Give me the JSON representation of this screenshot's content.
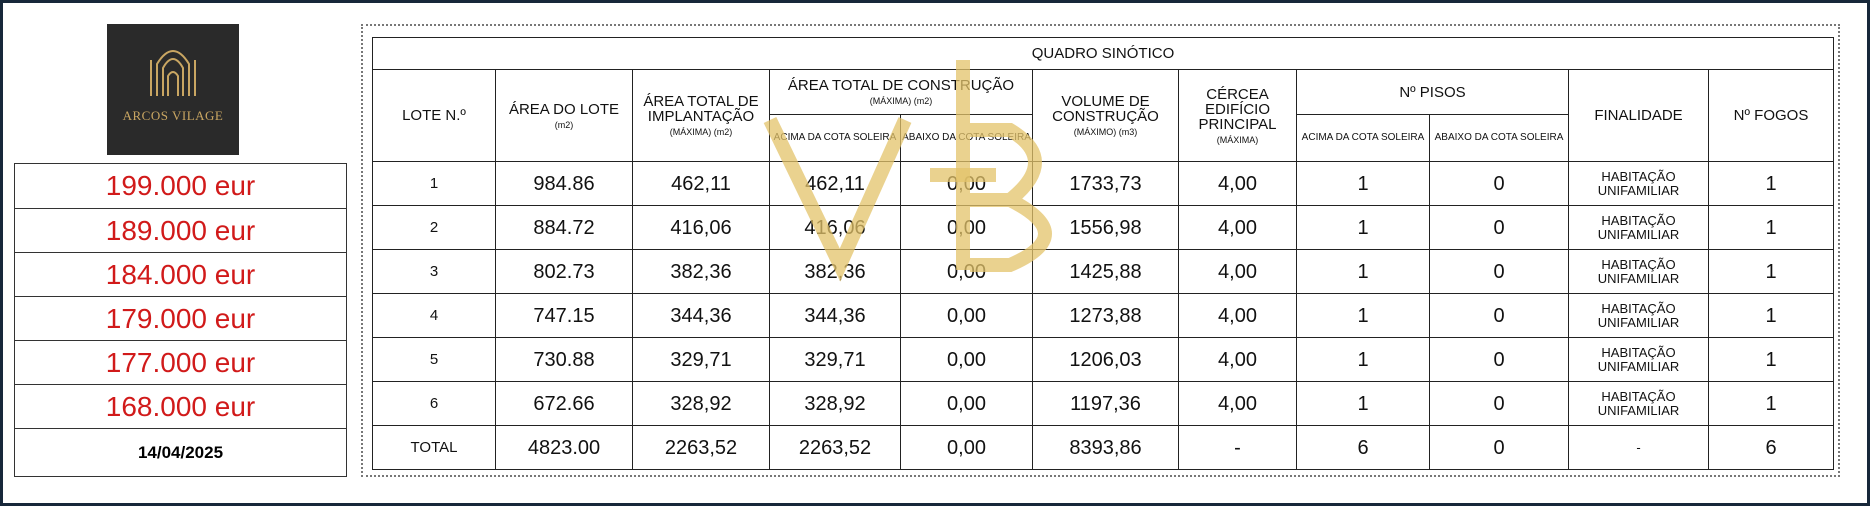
{
  "logo": {
    "text": "ARCOS VILAGE"
  },
  "prices": [
    "199.000 eur",
    "189.000 eur",
    "184.000 eur",
    "179.000 eur",
    "177.000 eur",
    "168.000 eur"
  ],
  "date": "14/04/2025",
  "table": {
    "title": "QUADRO SINÓTICO",
    "headers": {
      "lote": "LOTE N.º",
      "area_lote": "ÁREA DO LOTE",
      "area_lote_unit": "(m2)",
      "implantacao": "ÁREA TOTAL DE IMPLANTAÇÃO",
      "implantacao_unit": "(MÁXIMA) (m2)",
      "construcao": "ÁREA TOTAL DE CONSTRUÇÃO",
      "construcao_unit": "(MÁXIMA) (m2)",
      "construcao_acima": "ACIMA DA COTA SOLEIRA",
      "construcao_abaixo": "ABAIXO DA COTA SOLEIRA",
      "volume": "VOLUME DE CONSTRUÇÃO",
      "volume_unit": "(MÁXIMO) (m3)",
      "cercea": "CÉRCEA EDIFÍCIO PRINCIPAL",
      "cercea_unit": "(MÁXIMA)",
      "pisos": "Nº PISOS",
      "pisos_acima": "ACIMA DA COTA SOLEIRA",
      "pisos_abaixo": "ABAIXO DA COTA SOLEIRA",
      "finalidade": "FINALIDADE",
      "fogos": "Nº FOGOS"
    },
    "rows": [
      [
        "1",
        "984.86",
        "462,11",
        "462,11",
        "0,00",
        "1733,73",
        "4,00",
        "1",
        "0",
        "HABITAÇÃO UNIFAMILIAR",
        "1"
      ],
      [
        "2",
        "884.72",
        "416,06",
        "416,06",
        "0,00",
        "1556,98",
        "4,00",
        "1",
        "0",
        "HABITAÇÃO UNIFAMILIAR",
        "1"
      ],
      [
        "3",
        "802.73",
        "382,36",
        "382,36",
        "0,00",
        "1425,88",
        "4,00",
        "1",
        "0",
        "HABITAÇÃO UNIFAMILIAR",
        "1"
      ],
      [
        "4",
        "747.15",
        "344,36",
        "344,36",
        "0,00",
        "1273,88",
        "4,00",
        "1",
        "0",
        "HABITAÇÃO UNIFAMILIAR",
        "1"
      ],
      [
        "5",
        "730.88",
        "329,71",
        "329,71",
        "0,00",
        "1206,03",
        "4,00",
        "1",
        "0",
        "HABITAÇÃO UNIFAMILIAR",
        "1"
      ],
      [
        "6",
        "672.66",
        "328,92",
        "328,92",
        "0,00",
        "1197,36",
        "4,00",
        "1",
        "0",
        "HABITAÇÃO UNIFAMILIAR",
        "1"
      ],
      [
        "TOTAL",
        "4823.00",
        "2263,52",
        "2263,52",
        "0,00",
        "8393,86",
        "-",
        "6",
        "0",
        "-",
        "6"
      ]
    ]
  }
}
